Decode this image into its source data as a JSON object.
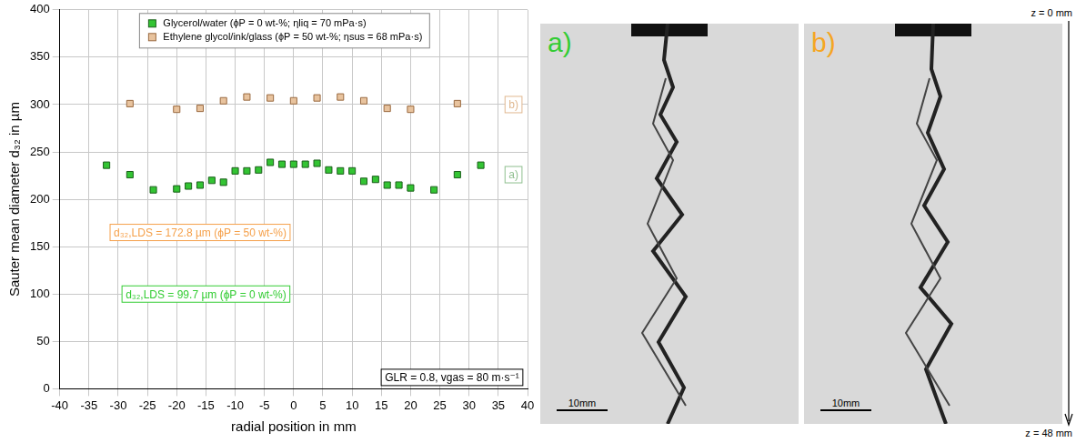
{
  "chart_data": {
    "type": "scatter",
    "x_label": "radial position in mm",
    "y_label": "Sauter mean diameter d₃₂ in µm",
    "xlim": [
      -40,
      40
    ],
    "xticks": [
      -40,
      -35,
      -30,
      -25,
      -20,
      -15,
      -10,
      -5,
      0,
      5,
      10,
      15,
      20,
      25,
      30,
      35,
      40
    ],
    "ylim": [
      0,
      400
    ],
    "yticks": [
      0,
      50,
      100,
      150,
      200,
      250,
      300,
      350,
      400
    ],
    "grid": true,
    "legend": "top",
    "marker": "square",
    "series": [
      {
        "name": "Glycerol/water (ϕP = 0 wt-%; ηliq = 70 mPa·s)",
        "color": "#33c433",
        "x": [
          -32,
          -28,
          -24,
          -20,
          -18,
          -16,
          -14,
          -12,
          -10,
          -8,
          -6,
          -4,
          -2,
          0,
          2,
          4,
          6,
          8,
          10,
          12,
          14,
          16,
          18,
          20,
          24,
          28,
          32
        ],
        "values": [
          236,
          226,
          210,
          211,
          214,
          215,
          220,
          218,
          230,
          230,
          231,
          239,
          237,
          237,
          237,
          238,
          231,
          230,
          230,
          219,
          221,
          215,
          215,
          212,
          210,
          226,
          236
        ]
      },
      {
        "name": "Ethylene glycol/ink/glass (ϕP = 50 wt-%; ηsus = 68 mPa·s)",
        "color": "#e8c39e",
        "x": [
          -28,
          -20,
          -16,
          -12,
          -8,
          -4,
          0,
          4,
          8,
          12,
          16,
          20,
          28
        ],
        "values": [
          301,
          295,
          296,
          304,
          308,
          307,
          304,
          307,
          308,
          304,
          296,
          295,
          301
        ]
      }
    ],
    "annotations": [
      {
        "text": "a)",
        "color": "#8fbf8f"
      },
      {
        "text": "b)",
        "color": "#e0b890"
      },
      {
        "text": "d₃₂,LDS = 172.8 µm (ϕP = 50 wt-%)",
        "color": "#f5a04a"
      },
      {
        "text": "d₃₂,LDS = 99.7 µm (ϕP = 0 wt-%)",
        "color": "#33cc33"
      },
      {
        "text": "GLR = 0.8, vgas = 80 m·s⁻¹",
        "color": "#000000"
      }
    ]
  },
  "images": [
    {
      "label": "a)",
      "color": "#33cc33",
      "scale_bar": "10mm"
    },
    {
      "label": "b)",
      "color": "#f5a623",
      "scale_bar": "10mm"
    }
  ],
  "depth_axis": {
    "top": "z = 0 mm",
    "bottom": "z = 48 mm"
  }
}
